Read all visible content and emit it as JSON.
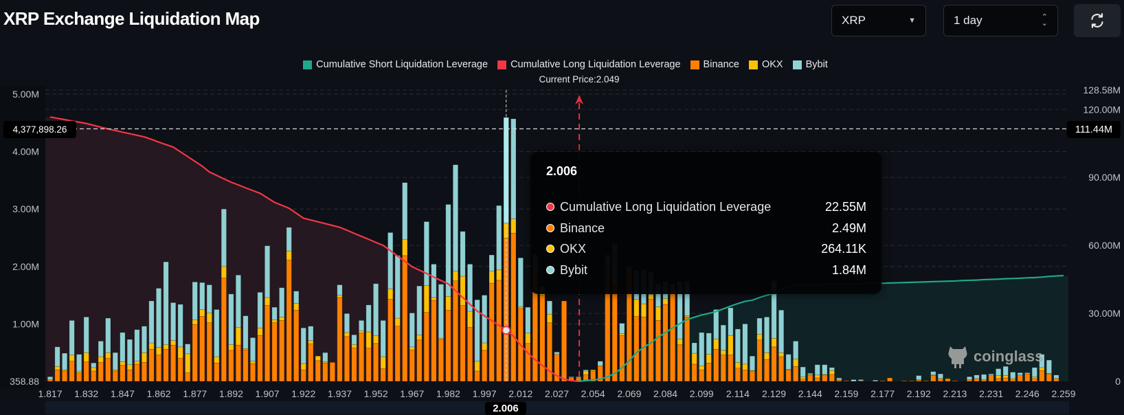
{
  "header": {
    "title": "XRP Exchange Liquidation Map",
    "coin_select": "XRP",
    "range_select": "1 day",
    "refresh_icon": "refresh-icon"
  },
  "legend": [
    {
      "label": "Cumulative Short Liquidation Leverage",
      "color": "#1fa88c"
    },
    {
      "label": "Cumulative Long Liquidation Leverage",
      "color": "#f23645"
    },
    {
      "label": "Binance",
      "color": "#ff8000"
    },
    {
      "label": "OKX",
      "color": "#ffc107"
    },
    {
      "label": "Bybit",
      "color": "#8fd3d6"
    }
  ],
  "current_price_label": "Current Price:2.049",
  "crosshair": {
    "x_label": "2.006",
    "left_value": "4,377,898.26",
    "right_value": "111.44M"
  },
  "tooltip": {
    "title": "2.006",
    "rows": [
      {
        "label": "Cumulative Long Liquidation Leverage",
        "value": "22.55M",
        "color": "#f23645"
      },
      {
        "label": "Binance",
        "value": "2.49M",
        "color": "#ff8000"
      },
      {
        "label": "OKX",
        "value": "264.11K",
        "color": "#ffc107"
      },
      {
        "label": "Bybit",
        "value": "1.84M",
        "color": "#8fd3d6"
      }
    ]
  },
  "watermark": "coinglass",
  "chart_data": {
    "type": "bar",
    "stacked": true,
    "x_tick_labels": [
      "1.817",
      "1.832",
      "1.847",
      "1.862",
      "1.877",
      "1.892",
      "1.907",
      "1.922",
      "1.937",
      "1.952",
      "1.967",
      "1.982",
      "1.997",
      "2.012",
      "2.027",
      "2.054",
      "2.069",
      "2.084",
      "2.099",
      "2.114",
      "2.129",
      "2.144",
      "2.159",
      "2.177",
      "2.192",
      "2.213",
      "2.231",
      "2.246",
      "2.259"
    ],
    "left_axis": {
      "ticks": [
        5,
        4,
        3,
        2,
        1,
        0
      ],
      "tick_labels": [
        "5.00M",
        "4.00M",
        "3.00M",
        "2.00M",
        "1.00M",
        "358.88"
      ],
      "ylim_millions": [
        0,
        5
      ]
    },
    "right_axis": {
      "ticks": [
        128.58,
        120,
        90,
        60,
        30,
        0
      ],
      "tick_labels": [
        "128.58M",
        "120.00M",
        "90.00M",
        "60.00M",
        "30.00M",
        "0"
      ],
      "ylim_millions": [
        0,
        128.58
      ]
    },
    "current_price": 2.049,
    "hovered_bar": "2.006",
    "grid": true,
    "legend_position": "top",
    "series": [
      {
        "name": "Binance",
        "axis": "left",
        "unit": "M",
        "values": [
          0.03,
          0.2,
          0.18,
          0.35,
          0.15,
          0.34,
          0.18,
          0.33,
          0.4,
          0.18,
          0.28,
          0.2,
          0.3,
          0.33,
          0.56,
          0.46,
          0.56,
          0.63,
          0.4,
          0.15,
          0.99,
          1.13,
          1.02,
          0.32,
          1.8,
          0.54,
          0.63,
          0.55,
          0.31,
          0.8,
          1.32,
          1.02,
          1.06,
          2.11,
          1.24,
          0.2,
          0.65,
          0.36,
          0.32,
          0.33,
          1.46,
          0.78,
          0.58,
          0.84,
          0.58,
          0.66,
          0.22,
          1.43,
          0.96,
          2.19,
          0.55,
          0.72,
          1.2,
          1.41,
          0.73,
          1.24,
          1.75,
          1.32,
          0.94,
          0.18,
          0.54,
          1.71,
          1.76,
          2.49,
          2.58,
          1.27,
          0.66,
          1.8,
          1.5,
          1.02,
          0.47,
          1.4,
          0.06,
          0.05,
          0.12,
          0.18,
          0.27,
          2.1,
          1.7,
          0.8,
          2.0,
          1.13,
          1.12,
          1.43,
          1.06,
          1.34,
          1.7,
          0.64,
          1.12,
          0.3,
          0.2,
          0.32,
          0.56,
          0.46,
          0.46,
          0.23,
          0.2,
          0.18,
          0.72,
          0.38,
          0.6,
          0.43,
          0.2,
          0.26,
          0.04,
          0.11,
          0.06,
          0.11,
          0.12,
          0.02,
          0.01,
          0,
          0.01,
          0,
          0,
          0.01,
          0.06,
          0,
          0.01,
          0.01,
          0.02,
          0.01,
          0.1,
          0.05,
          0.04,
          0.01,
          0,
          0.03,
          0.05,
          0.03,
          0.11,
          0.05,
          0.06,
          0.03,
          0.11,
          0.13,
          0.05,
          0.19,
          0.13,
          0.05,
          0
        ]
      },
      {
        "name": "OKX",
        "axis": "left",
        "unit": "M",
        "values": [
          0,
          0.06,
          0.02,
          0.11,
          0.03,
          0.16,
          0.06,
          0.1,
          0.1,
          0.02,
          0.06,
          0.09,
          0.05,
          0.17,
          0.11,
          0.13,
          0.08,
          0.08,
          0.2,
          0.33,
          0.08,
          0.12,
          0.17,
          0.11,
          0.2,
          0.1,
          0.31,
          0.02,
          0.04,
          0.13,
          0.14,
          0.05,
          0.06,
          0.16,
          0.12,
          0.11,
          0.06,
          0.08,
          0.02,
          0,
          0.04,
          0.07,
          0.06,
          0.04,
          0.28,
          0.14,
          0.21,
          0.18,
          0.14,
          0.28,
          0.05,
          0.09,
          0.47,
          0.05,
          0.02,
          0.24,
          0.17,
          0.51,
          0.28,
          0.17,
          0.13,
          0.21,
          0.18,
          0.264,
          0.25,
          0.03,
          0.18,
          0.1,
          0.05,
          0.15,
          0,
          0,
          0.01,
          0.02,
          0.06,
          0.02,
          0,
          0,
          0.1,
          0.03,
          0,
          0.3,
          0.23,
          0.08,
          0.24,
          0.1,
          0,
          0.1,
          0.02,
          0.19,
          0.07,
          0.15,
          0.18,
          0.08,
          0.34,
          0.1,
          0.1,
          0.01,
          0.1,
          0.12,
          0.15,
          0.07,
          0.01,
          0.13,
          0.04,
          0.01,
          0.05,
          0.01,
          0.07,
          0.02,
          0,
          0,
          0,
          0,
          0,
          0,
          0,
          0,
          0,
          0,
          0.01,
          0,
          0.01,
          0,
          0.01,
          0,
          0,
          0,
          0,
          0,
          0,
          0.05,
          0.04,
          0.02,
          0,
          0,
          0.03,
          0.05,
          0.01,
          0,
          0
        ]
      },
      {
        "name": "Bybit",
        "axis": "left",
        "unit": "M",
        "values": [
          0.05,
          0.34,
          0.29,
          0.6,
          0.29,
          0.62,
          0.08,
          0.27,
          0.6,
          0.3,
          0.51,
          0.44,
          0.55,
          0.46,
          0.73,
          1.03,
          1.44,
          0.66,
          0.74,
          0.17,
          0.66,
          0.47,
          0.49,
          0.82,
          1.0,
          0.88,
          0.91,
          0.57,
          0.41,
          0.62,
          0.9,
          0.22,
          0.51,
          0.41,
          0.21,
          0.62,
          0.25,
          0,
          0.16,
          0,
          0.18,
          0.33,
          0.17,
          0.18,
          0.47,
          0.9,
          0.63,
          0.98,
          1.09,
          0.99,
          0.59,
          0.85,
          1.11,
          0.58,
          0.94,
          1.6,
          1.85,
          0.78,
          0.82,
          1.07,
          0.83,
          0.28,
          1.12,
          1.84,
          1.74,
          0.85,
          0.45,
          0.3,
          0.1,
          0.23,
          0.04,
          0,
          0.01,
          0.01,
          0.02,
          0,
          0.08,
          0.1,
          0.6,
          0.18,
          0,
          0.5,
          0.6,
          0.4,
          0.4,
          0.3,
          0,
          1.0,
          0.6,
          0.18,
          0.58,
          0.37,
          0.51,
          0.44,
          0.48,
          0.58,
          0.7,
          0.25,
          0.28,
          0.62,
          1.0,
          0.74,
          0.26,
          0.31,
          0.17,
          0.02,
          0.18,
          0.17,
          0.05,
          0.02,
          0,
          0.03,
          0.02,
          0,
          0.02,
          0,
          0,
          0,
          0,
          0,
          0.07,
          0,
          0.06,
          0.08,
          0,
          0,
          0,
          0.05,
          0.06,
          0.09,
          0.02,
          0.12,
          0.16,
          0.11,
          0.04,
          0.02,
          0.16,
          0.23,
          0.23,
          0.06,
          0
        ]
      },
      {
        "name": "Cumulative Long Liquidation Leverage",
        "type": "area",
        "axis": "right",
        "unit": "M",
        "align": "start",
        "values": [
          116.7,
          116.1,
          115.5,
          114.9,
          114.4,
          113.8,
          113.0,
          112.2,
          111.4,
          110.7,
          110.0,
          109.3,
          108.6,
          107.9,
          106.8,
          105.6,
          104.5,
          103.4,
          101.3,
          99.2,
          97.1,
          95.0,
          92.4,
          90.9,
          89.4,
          87.9,
          86.7,
          85.4,
          84.2,
          83.0,
          81.0,
          79.0,
          77.7,
          76.4,
          74.2,
          72.0,
          71.2,
          70.4,
          69.6,
          68.8,
          68.0,
          66.7,
          65.3,
          64.0,
          62.7,
          61.3,
          60.0,
          57.7,
          55.3,
          53.0,
          50.6,
          49.1,
          47.6,
          46.0,
          44.5,
          43.0,
          40.0,
          37.0,
          34.0,
          31.0,
          28.9,
          26.8,
          24.7,
          22.55,
          20,
          16,
          12.5,
          9.5,
          7,
          4.5,
          2.5,
          1,
          0.3,
          0
        ]
      },
      {
        "name": "Cumulative Short Liquidation Leverage",
        "type": "area",
        "axis": "right",
        "unit": "M",
        "align": "end",
        "values": [
          0,
          0.3,
          0.6,
          1.0,
          2,
          3.5,
          6,
          9,
          12.7,
          15,
          17,
          19.5,
          21.5,
          23.6,
          25.5,
          27.3,
          28.3,
          29.3,
          30,
          30.8,
          32,
          33.2,
          34.3,
          35.3,
          35.8,
          37,
          38,
          38.8,
          40.5,
          42,
          42.5,
          42.6,
          42.6,
          42.7,
          42.8,
          42.8,
          42.9,
          43.0,
          43.0,
          43.1,
          43.2,
          43.2,
          43.3,
          43.4,
          43.5,
          43.6,
          43.7,
          43.8,
          43.9,
          44.0,
          44.1,
          44.2,
          44.3,
          44.5,
          44.6,
          44.7,
          44.9,
          45.0,
          45.1,
          45.3,
          45.4,
          45.5,
          45.7,
          45.8,
          46.0,
          46.3,
          46.5,
          46.7
        ]
      }
    ]
  }
}
